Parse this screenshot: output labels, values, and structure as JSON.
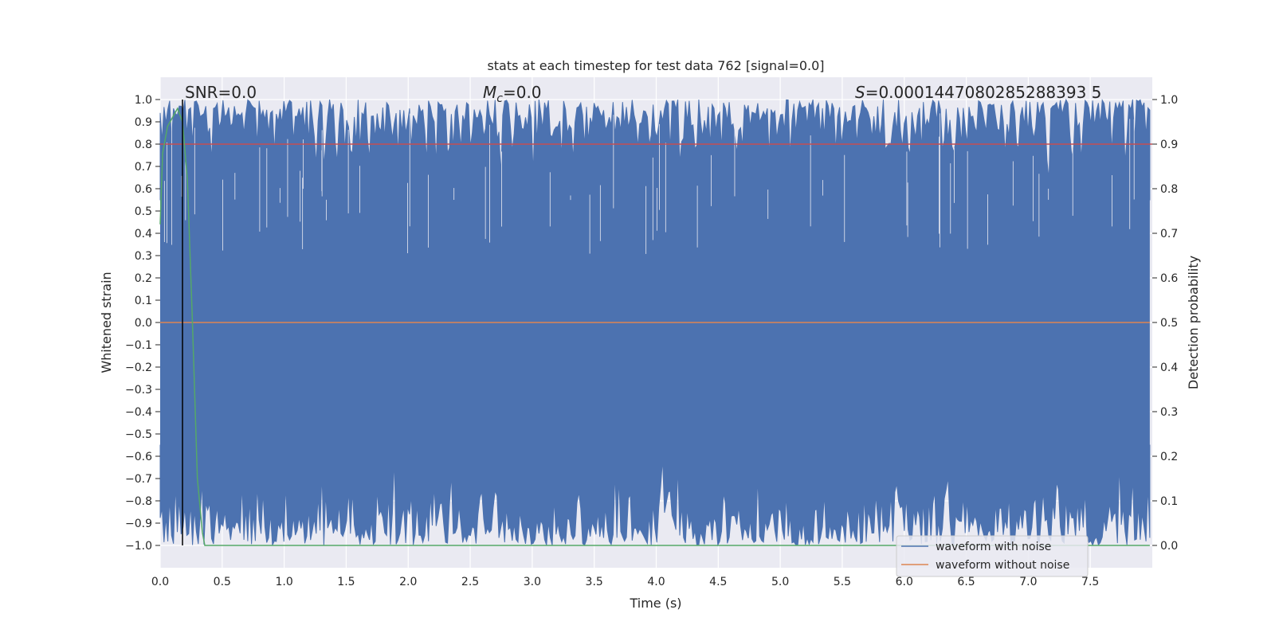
{
  "chart_data": {
    "type": "line",
    "title": "stats at each timestep for test data 762 [signal=0.0]",
    "xlabel": "Time (s)",
    "ylabel": "Whitened strain",
    "y2label": "Detection probability",
    "xlim": [
      0.0,
      8.0
    ],
    "ylim": [
      -1.1,
      1.1
    ],
    "y2lim": [
      -0.05,
      1.05
    ],
    "x_ticks": [
      "0.0",
      "0.5",
      "1.0",
      "1.5",
      "2.0",
      "2.5",
      "3.0",
      "3.5",
      "4.0",
      "4.5",
      "5.0",
      "5.5",
      "6.0",
      "6.5",
      "7.0",
      "7.5"
    ],
    "y_ticks": [
      "1.0",
      "0.9",
      "0.8",
      "0.7",
      "0.6",
      "0.5",
      "0.4",
      "0.3",
      "0.2",
      "0.1",
      "0.0",
      "−0.1",
      "−0.2",
      "−0.3",
      "−0.4",
      "−0.5",
      "−0.6",
      "−0.7",
      "−0.8",
      "−0.9",
      "−1.0"
    ],
    "y2_ticks": [
      "1.0",
      "0.9",
      "0.8",
      "0.7",
      "0.6",
      "0.5",
      "0.4",
      "0.3",
      "0.2",
      "0.1",
      "0.0"
    ],
    "grid": true,
    "legend_position": "lower-right",
    "annotations": {
      "snr": "SNR=0.0",
      "mc": "=0.0",
      "mc_symbol": "M",
      "mc_sub": "c",
      "s": "=0.0001447080285288393 5",
      "s_symbol": "S"
    },
    "series": [
      {
        "name": "waveform with noise",
        "color": "#4c72b0",
        "axis": "left",
        "description_range": [
          -1.0,
          1.0
        ]
      },
      {
        "name": "waveform without noise",
        "color": "#dd8452",
        "axis": "left",
        "x": [
          0.0,
          7.98
        ],
        "y": [
          0.0,
          0.0
        ]
      },
      {
        "axis": "right",
        "color": "#55a868",
        "x": [
          0.0,
          0.02,
          0.06,
          0.1,
          0.14,
          0.18,
          0.22,
          0.26,
          0.3,
          0.34,
          0.36,
          7.98
        ],
        "y": [
          0.72,
          0.88,
          0.94,
          0.96,
          0.98,
          0.95,
          0.82,
          0.5,
          0.15,
          0.03,
          0.0,
          0.0
        ]
      }
    ],
    "threshold": {
      "axis": "right",
      "value": 0.9,
      "color": "#c44e52"
    },
    "marker_line": {
      "x": 0.18,
      "color": "#000000"
    }
  }
}
